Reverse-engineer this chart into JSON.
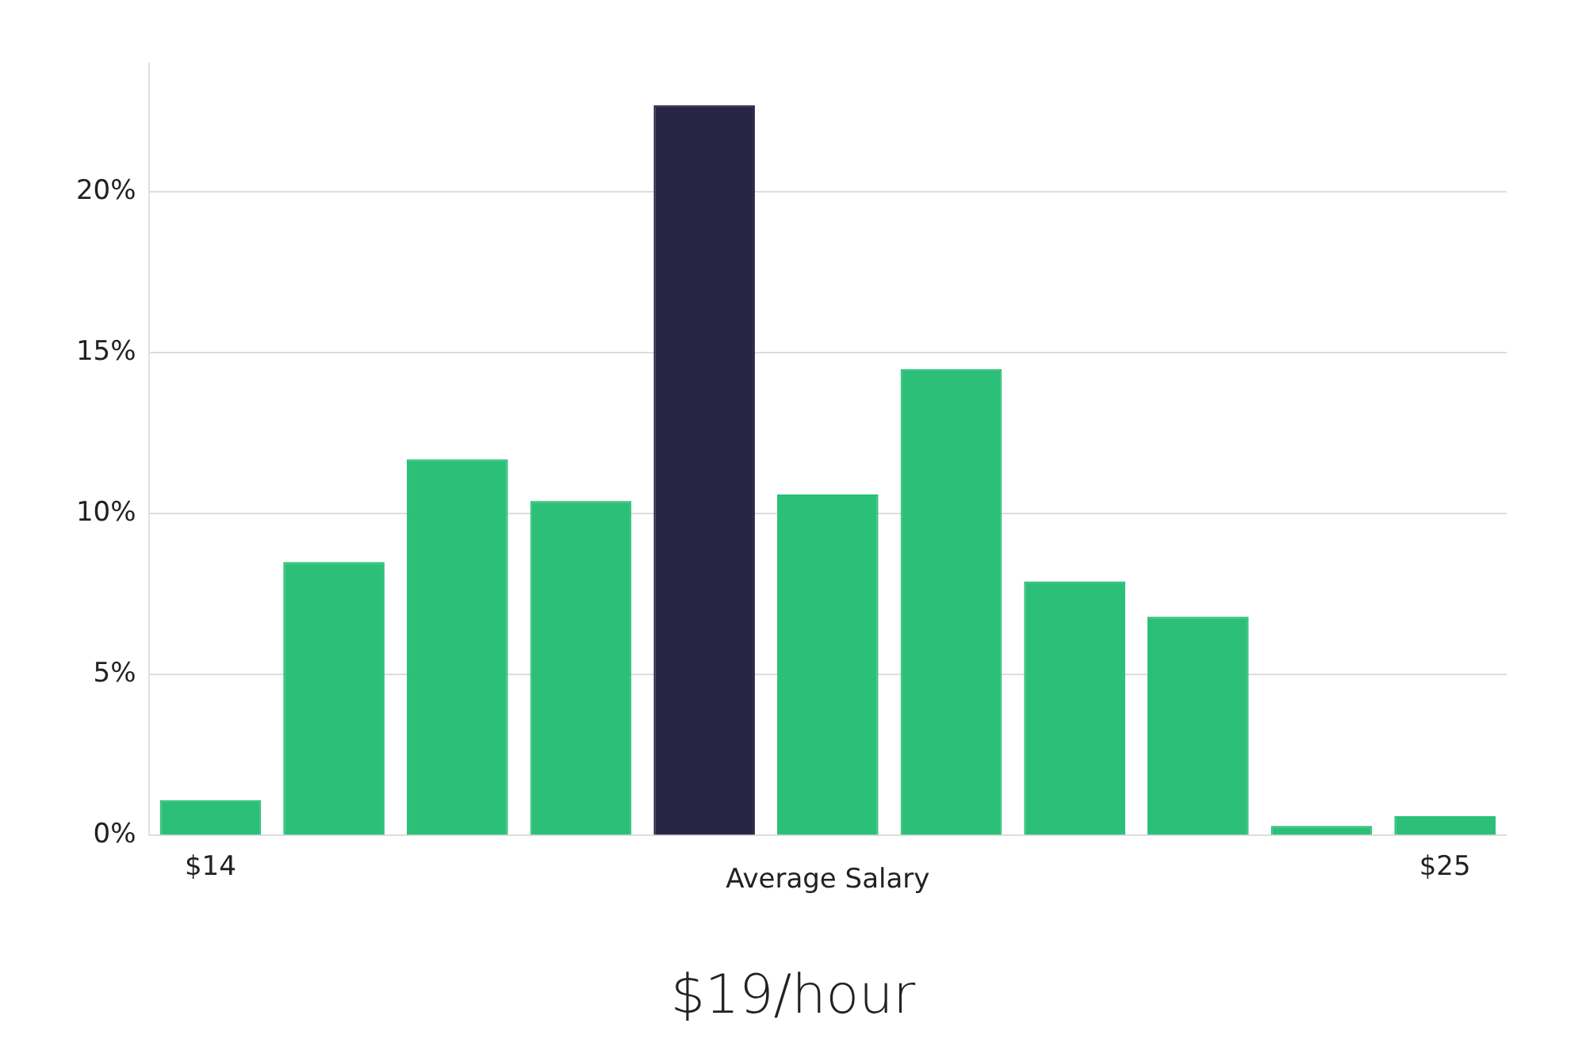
{
  "chart_data": {
    "type": "bar",
    "xlabel": "Average Salary",
    "categories": [
      "$14",
      null,
      null,
      null,
      null,
      null,
      null,
      null,
      null,
      null,
      "$25"
    ],
    "values": [
      1.1,
      8.5,
      11.7,
      10.4,
      22.7,
      10.6,
      14.5,
      7.9,
      6.8,
      0.3,
      0.6
    ],
    "colors": [
      "#2bbf78",
      "#2bbf78",
      "#2bbf78",
      "#2bbf78",
      "#272444",
      "#2bbf78",
      "#2bbf78",
      "#2bbf78",
      "#2bbf78",
      "#2bbf78",
      "#2bbf78"
    ],
    "ylim": [
      0,
      24
    ],
    "yticks": [
      {
        "value": 0,
        "label": "0%"
      },
      {
        "value": 5,
        "label": "5%"
      },
      {
        "value": 10,
        "label": "10%"
      },
      {
        "value": 15,
        "label": "15%"
      },
      {
        "value": 20,
        "label": "20%"
      }
    ],
    "grid": "y",
    "legend": false,
    "annotations": [
      "$19/hour"
    ]
  }
}
